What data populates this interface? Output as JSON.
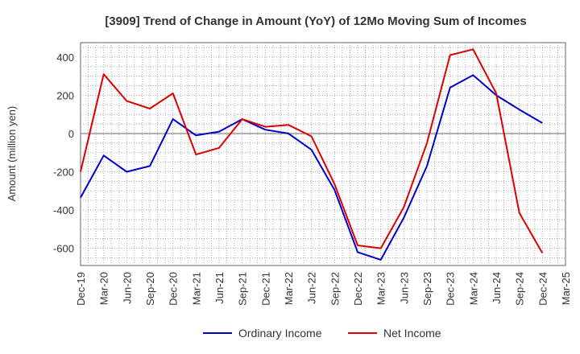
{
  "chart_data": {
    "type": "line",
    "title": "[3909]  Trend of Change in Amount (YoY) of 12Mo Moving Sum of Incomes",
    "xlabel": "",
    "ylabel": "Amount (million yen)",
    "categories": [
      "Dec-19",
      "Mar-20",
      "Jun-20",
      "Sep-20",
      "Dec-20",
      "Mar-21",
      "Jun-21",
      "Sep-21",
      "Dec-21",
      "Mar-22",
      "Jun-22",
      "Sep-22",
      "Dec-22",
      "Mar-23",
      "Jun-23",
      "Sep-23",
      "Dec-23",
      "Mar-24",
      "Jun-24",
      "Sep-24",
      "Dec-24",
      "Mar-25"
    ],
    "yticks": [
      -600,
      -400,
      -200,
      0,
      200,
      400
    ],
    "ylim": [
      -690,
      475
    ],
    "grid": true,
    "legend_position": "bottom-center",
    "series": [
      {
        "name": "Ordinary Income",
        "color": "#0000cc",
        "values": [
          -335,
          -115,
          -200,
          -170,
          75,
          -10,
          10,
          75,
          20,
          0,
          -85,
          -295,
          -620,
          -660,
          -440,
          -170,
          240,
          305,
          200,
          125,
          55,
          null
        ]
      },
      {
        "name": "Net Income",
        "color": "#dd0000",
        "values": [
          -200,
          310,
          170,
          130,
          210,
          -110,
          -75,
          75,
          35,
          45,
          -15,
          -265,
          -585,
          -600,
          -385,
          -50,
          410,
          440,
          210,
          -415,
          -625,
          null
        ]
      }
    ]
  }
}
